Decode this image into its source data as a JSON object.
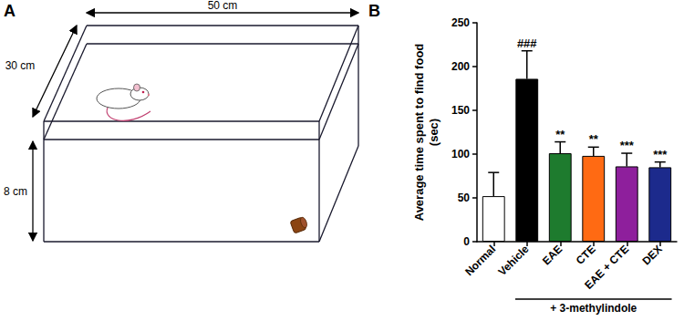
{
  "diagram": {
    "panel_label": "A",
    "width_label": "50 cm",
    "depth_label": "30 cm",
    "height_label": "8 cm"
  },
  "chart_panel_label": "B",
  "chart_data": {
    "type": "bar",
    "ylabel": [
      "Average time spent to find food",
      "(sec)"
    ],
    "categories": [
      "Normal",
      "Vehicle",
      "EAE",
      "CTE",
      "EAE + CTE",
      "DEX"
    ],
    "values": [
      52,
      186,
      101,
      98,
      86,
      85
    ],
    "errors": [
      27,
      32,
      13,
      10,
      15,
      6
    ],
    "significance": [
      "",
      "###",
      "**",
      "**",
      "***",
      "***"
    ],
    "colors": [
      "#ffffff",
      "#000000",
      "#1e7b2e",
      "#ff6a13",
      "#8e1f9c",
      "#1c2a8c"
    ],
    "ylim": [
      0,
      250
    ],
    "yticks": [
      0,
      50,
      100,
      150,
      200,
      250
    ],
    "grid": false,
    "annotation": {
      "text": "+ 3-methylindole",
      "from": "Vehicle",
      "to": "DEX"
    }
  }
}
